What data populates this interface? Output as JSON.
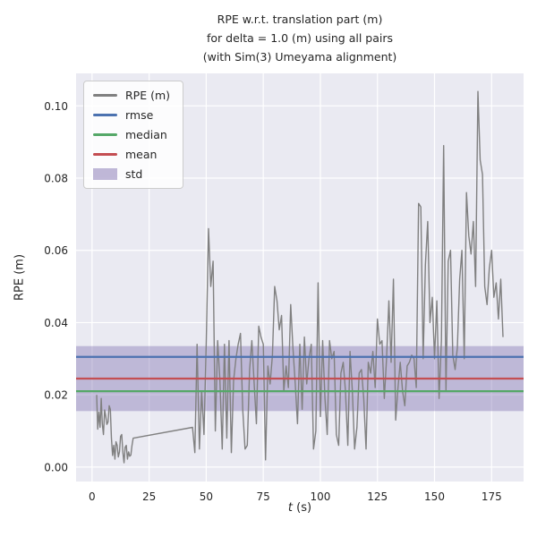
{
  "title_lines": [
    "RPE w.r.t. translation part (m)",
    "for delta = 1.0 (m) using all pairs",
    "(with Sim(3) Umeyama alignment)"
  ],
  "chart_data": {
    "type": "line",
    "title": "RPE w.r.t. translation part (m) for delta = 1.0 (m) using all pairs (with Sim(3) Umeyama alignment)",
    "xlabel_math": "t",
    "xlabel_rest": " (s)",
    "ylabel": "RPE (m)",
    "xlim": [
      -7,
      189
    ],
    "ylim": [
      -0.004,
      0.109
    ],
    "xticks": [
      0,
      25,
      50,
      75,
      100,
      125,
      150,
      175
    ],
    "xtick_labels": [
      "0",
      "25",
      "50",
      "75",
      "100",
      "125",
      "150",
      "175"
    ],
    "yticks": [
      0.0,
      0.02,
      0.04,
      0.06,
      0.08,
      0.1
    ],
    "ytick_labels": [
      "0.00",
      "0.02",
      "0.04",
      "0.06",
      "0.08",
      "0.10"
    ],
    "grid": true,
    "legend_position": "upper left",
    "legend": [
      "RPE (m)",
      "rmse",
      "median",
      "mean",
      "std"
    ],
    "colors": {
      "plot_bg": "#eaeaf2",
      "grid": "#ffffff",
      "rpe": "#808080",
      "rmse": "#4c72b0",
      "median": "#55a868",
      "mean": "#c44e52",
      "std": "#8172b2"
    },
    "stats": {
      "rmse": 0.0305,
      "median": 0.021,
      "mean": 0.0245,
      "std": 0.009
    },
    "band": {
      "name": "std",
      "color": "#8172b2",
      "from": 0.0155,
      "to": 0.0335
    },
    "hlines": [
      {
        "name": "rmse",
        "color": "#4c72b0",
        "y": 0.0305
      },
      {
        "name": "median",
        "color": "#55a868",
        "y": 0.021
      },
      {
        "name": "mean",
        "color": "#c44e52",
        "y": 0.0245
      }
    ],
    "series": [
      {
        "name": "RPE (m)",
        "color": "#808080",
        "points": [
          [
            2,
            0.02
          ],
          [
            2.5,
            0.0105
          ],
          [
            3,
            0.0152
          ],
          [
            3.5,
            0.011
          ],
          [
            4,
            0.019
          ],
          [
            4.5,
            0.012
          ],
          [
            5,
            0.009
          ],
          [
            5.5,
            0.0158
          ],
          [
            6,
            0.014
          ],
          [
            6.5,
            0.0118
          ],
          [
            7,
            0.0125
          ],
          [
            7.5,
            0.017
          ],
          [
            8,
            0.016
          ],
          [
            8.5,
            0.008
          ],
          [
            9,
            0.0032
          ],
          [
            9.5,
            0.006
          ],
          [
            10,
            0.0022
          ],
          [
            10.5,
            0.007
          ],
          [
            11,
            0.006
          ],
          [
            11.5,
            0.0028
          ],
          [
            12,
            0.0042
          ],
          [
            12.5,
            0.0085
          ],
          [
            13,
            0.009
          ],
          [
            13.5,
            0.004
          ],
          [
            14,
            0.0012
          ],
          [
            14.5,
            0.0055
          ],
          [
            15,
            0.006
          ],
          [
            15.5,
            0.0022
          ],
          [
            16,
            0.0042
          ],
          [
            16.5,
            0.003
          ],
          [
            17,
            0.0033
          ],
          [
            17.5,
            0.006
          ],
          [
            18,
            0.008
          ],
          [
            44,
            0.011
          ],
          [
            45,
            0.004
          ],
          [
            46,
            0.034
          ],
          [
            47,
            0.005
          ],
          [
            48,
            0.021
          ],
          [
            49,
            0.009
          ],
          [
            50,
            0.034
          ],
          [
            51,
            0.066
          ],
          [
            52,
            0.05
          ],
          [
            53,
            0.057
          ],
          [
            54,
            0.01
          ],
          [
            55,
            0.035
          ],
          [
            56,
            0.024
          ],
          [
            57,
            0.005
          ],
          [
            58,
            0.034
          ],
          [
            59,
            0.008
          ],
          [
            60,
            0.035
          ],
          [
            61,
            0.004
          ],
          [
            62,
            0.024
          ],
          [
            63,
            0.03
          ],
          [
            64,
            0.034
          ],
          [
            65,
            0.037
          ],
          [
            66,
            0.016
          ],
          [
            67,
            0.005
          ],
          [
            68,
            0.006
          ],
          [
            69,
            0.027
          ],
          [
            70,
            0.035
          ],
          [
            71,
            0.023
          ],
          [
            72,
            0.012
          ],
          [
            73,
            0.039
          ],
          [
            74,
            0.036
          ],
          [
            75,
            0.034
          ],
          [
            76,
            0.002
          ],
          [
            77,
            0.028
          ],
          [
            78,
            0.023
          ],
          [
            79,
            0.031
          ],
          [
            80,
            0.05
          ],
          [
            81,
            0.046
          ],
          [
            82,
            0.038
          ],
          [
            83,
            0.042
          ],
          [
            84,
            0.021
          ],
          [
            85,
            0.028
          ],
          [
            86,
            0.022
          ],
          [
            87,
            0.045
          ],
          [
            88,
            0.033
          ],
          [
            89,
            0.023
          ],
          [
            90,
            0.012
          ],
          [
            91,
            0.034
          ],
          [
            92,
            0.016
          ],
          [
            93,
            0.036
          ],
          [
            94,
            0.023
          ],
          [
            95,
            0.03
          ],
          [
            96,
            0.034
          ],
          [
            97,
            0.005
          ],
          [
            98,
            0.01
          ],
          [
            99,
            0.051
          ],
          [
            100,
            0.014
          ],
          [
            101,
            0.035
          ],
          [
            102,
            0.019
          ],
          [
            103,
            0.009
          ],
          [
            104,
            0.035
          ],
          [
            105,
            0.03
          ],
          [
            106,
            0.032
          ],
          [
            107,
            0.009
          ],
          [
            108,
            0.006
          ],
          [
            109,
            0.026
          ],
          [
            110,
            0.029
          ],
          [
            111,
            0.021
          ],
          [
            112,
            0.006
          ],
          [
            113,
            0.032
          ],
          [
            114,
            0.021
          ],
          [
            115,
            0.005
          ],
          [
            116,
            0.011
          ],
          [
            117,
            0.026
          ],
          [
            118,
            0.027
          ],
          [
            119,
            0.019
          ],
          [
            120,
            0.005
          ],
          [
            121,
            0.029
          ],
          [
            122,
            0.026
          ],
          [
            123,
            0.032
          ],
          [
            124,
            0.022
          ],
          [
            125,
            0.041
          ],
          [
            126,
            0.034
          ],
          [
            127,
            0.035
          ],
          [
            128,
            0.019
          ],
          [
            129,
            0.03
          ],
          [
            130,
            0.046
          ],
          [
            131,
            0.029
          ],
          [
            132,
            0.052
          ],
          [
            133,
            0.013
          ],
          [
            134,
            0.022
          ],
          [
            135,
            0.029
          ],
          [
            136,
            0.021
          ],
          [
            137,
            0.017
          ],
          [
            138,
            0.028
          ],
          [
            139,
            0.029
          ],
          [
            140,
            0.031
          ],
          [
            141,
            0.03
          ],
          [
            142,
            0.022
          ],
          [
            143,
            0.073
          ],
          [
            144,
            0.072
          ],
          [
            145,
            0.03
          ],
          [
            146,
            0.056
          ],
          [
            147,
            0.068
          ],
          [
            148,
            0.04
          ],
          [
            149,
            0.047
          ],
          [
            150,
            0.03
          ],
          [
            151,
            0.046
          ],
          [
            152,
            0.019
          ],
          [
            153,
            0.035
          ],
          [
            154,
            0.089
          ],
          [
            155,
            0.021
          ],
          [
            156,
            0.057
          ],
          [
            157,
            0.06
          ],
          [
            158,
            0.031
          ],
          [
            159,
            0.027
          ],
          [
            160,
            0.033
          ],
          [
            161,
            0.052
          ],
          [
            162,
            0.06
          ],
          [
            163,
            0.03
          ],
          [
            164,
            0.076
          ],
          [
            165,
            0.064
          ],
          [
            166,
            0.059
          ],
          [
            167,
            0.068
          ],
          [
            168,
            0.05
          ],
          [
            169,
            0.104
          ],
          [
            170,
            0.085
          ],
          [
            171,
            0.081
          ],
          [
            172,
            0.05
          ],
          [
            173,
            0.045
          ],
          [
            174,
            0.055
          ],
          [
            175,
            0.06
          ],
          [
            176,
            0.047
          ],
          [
            177,
            0.051
          ],
          [
            178,
            0.041
          ],
          [
            179,
            0.052
          ],
          [
            180,
            0.036
          ]
        ]
      }
    ]
  },
  "legend_items": [
    {
      "label": "RPE (m)",
      "swatch": "line",
      "color": "#808080"
    },
    {
      "label": "rmse",
      "swatch": "line",
      "color": "#4c72b0"
    },
    {
      "label": "median",
      "swatch": "line",
      "color": "#55a868"
    },
    {
      "label": "mean",
      "swatch": "line",
      "color": "#c44e52"
    },
    {
      "label": "std",
      "swatch": "patch",
      "color": "#8172b2"
    }
  ]
}
